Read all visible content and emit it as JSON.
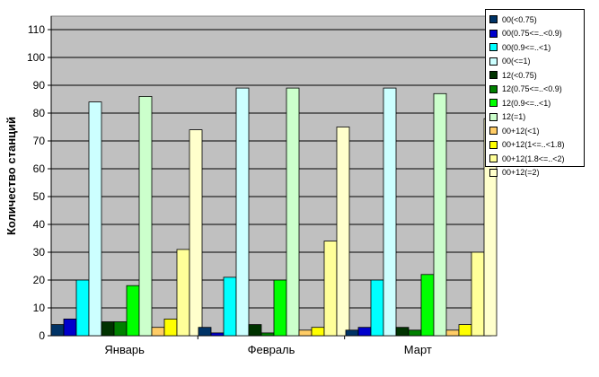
{
  "chart_data": {
    "type": "bar",
    "title": "",
    "xlabel": "",
    "ylabel": "Количество станций",
    "ylim": [
      0,
      110
    ],
    "yticks": [
      0,
      10,
      20,
      30,
      40,
      50,
      60,
      70,
      80,
      90,
      100,
      110
    ],
    "grid": "horizontal",
    "legend_position": "right",
    "plot_background": "#c0c0c0",
    "categories": [
      "Январь",
      "Февраль",
      "Март"
    ],
    "series": [
      {
        "name": "00(<0.75)",
        "color": "#003366",
        "values": [
          4,
          3,
          2
        ]
      },
      {
        "name": "00(0.75<=..<0.9)",
        "color": "#0000cc",
        "values": [
          6,
          1,
          3
        ]
      },
      {
        "name": "00(0.9<=..<1)",
        "color": "#00ffff",
        "values": [
          20,
          21,
          20
        ]
      },
      {
        "name": "00(<=1)",
        "color": "#ccffff",
        "values": [
          84,
          89,
          89
        ]
      },
      {
        "name": "12(<0.75)",
        "color": "#003300",
        "values": [
          5,
          4,
          3
        ]
      },
      {
        "name": "12(0.75<=..<0.9)",
        "color": "#008000",
        "values": [
          5,
          1,
          2
        ]
      },
      {
        "name": "12(0.9<=..<1)",
        "color": "#00ff00",
        "values": [
          18,
          20,
          22
        ]
      },
      {
        "name": "12(=1)",
        "color": "#ccffcc",
        "values": [
          86,
          89,
          87
        ]
      },
      {
        "name": "00+12(<1)",
        "color": "#ffcc66",
        "values": [
          3,
          2,
          2
        ]
      },
      {
        "name": "00+12(1<=..<1.8)",
        "color": "#ffff00",
        "values": [
          6,
          3,
          4
        ]
      },
      {
        "name": "00+12(1.8<=..<2)",
        "color": "#ffff99",
        "values": [
          31,
          34,
          30
        ]
      },
      {
        "name": "00+12(=2)",
        "color": "#ffffcc",
        "values": [
          74,
          75,
          78
        ]
      }
    ]
  }
}
